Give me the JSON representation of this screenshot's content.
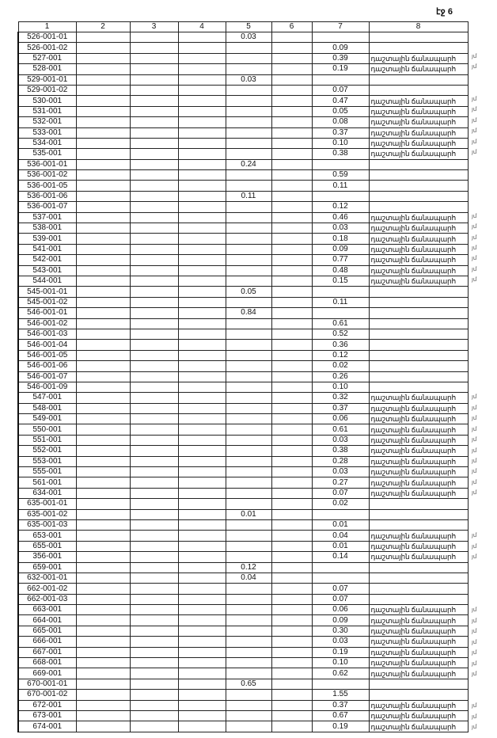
{
  "page_label": "էջ 6",
  "columns": [
    "1",
    "2",
    "3",
    "4",
    "5",
    "6",
    "7",
    "8"
  ],
  "road_label": "դաշտային ճանապարհ",
  "margin_mark": "յմ",
  "rows": [
    [
      "526-001-01",
      "0.03",
      "",
      ""
    ],
    [
      "526-001-02",
      "",
      "0.09",
      ""
    ],
    [
      "527-001",
      "",
      "0.39",
      "դաշտային ճանապարհ"
    ],
    [
      "528-001",
      "",
      "0.19",
      "դաշտային ճանապարհ"
    ],
    [
      "529-001-01",
      "0.03",
      "",
      ""
    ],
    [
      "529-001-02",
      "",
      "0.07",
      ""
    ],
    [
      "530-001",
      "",
      "0.47",
      "դաշտային ճանապարհ"
    ],
    [
      "531-001",
      "",
      "0.05",
      "դաշտային ճանապարհ"
    ],
    [
      "532-001",
      "",
      "0.08",
      "դաշտային ճանապարհ"
    ],
    [
      "533-001",
      "",
      "0.37",
      "դաշտային ճանապարհ"
    ],
    [
      "534-001",
      "",
      "0.10",
      "դաշտային ճանապարհ"
    ],
    [
      "535-001",
      "",
      "0.38",
      "դաշտային ճանապարհ"
    ],
    [
      "536-001-01",
      "0.24",
      "",
      ""
    ],
    [
      "536-001-02",
      "",
      "0.59",
      ""
    ],
    [
      "536-001-05",
      "",
      "0.11",
      ""
    ],
    [
      "536-001-06",
      "0.11",
      "",
      ""
    ],
    [
      "536-001-07",
      "",
      "0.12",
      ""
    ],
    [
      "537-001",
      "",
      "0.46",
      "դաշտային ճանապարհ"
    ],
    [
      "538-001",
      "",
      "0.03",
      "դաշտային ճանապարհ"
    ],
    [
      "539-001",
      "",
      "0.18",
      "դաշտային ճանապարհ"
    ],
    [
      "541-001",
      "",
      "0.09",
      "դաշտային ճանապարհ"
    ],
    [
      "542-001",
      "",
      "0.77",
      "դաշտային ճանապարհ"
    ],
    [
      "543-001",
      "",
      "0.48",
      "դաշտային ճանապարհ"
    ],
    [
      "544-001",
      "",
      "0.15",
      "դաշտային ճանապարհ"
    ],
    [
      "545-001-01",
      "0.05",
      "",
      ""
    ],
    [
      "545-001-02",
      "",
      "0.11",
      ""
    ],
    [
      "546-001-01",
      "0.84",
      "",
      ""
    ],
    [
      "546-001-02",
      "",
      "0.61",
      ""
    ],
    [
      "546-001-03",
      "",
      "0.52",
      ""
    ],
    [
      "546-001-04",
      "",
      "0.36",
      ""
    ],
    [
      "546-001-05",
      "",
      "0.12",
      ""
    ],
    [
      "546-001-06",
      "",
      "0.02",
      ""
    ],
    [
      "546-001-07",
      "",
      "0.26",
      ""
    ],
    [
      "546-001-09",
      "",
      "0.10",
      ""
    ],
    [
      "547-001",
      "",
      "0.32",
      "դաշտային ճանապարհ"
    ],
    [
      "548-001",
      "",
      "0.37",
      "դաշտային ճանապարհ"
    ],
    [
      "549-001",
      "",
      "0.06",
      "դաշտային ճանապարհ"
    ],
    [
      "550-001",
      "",
      "0.61",
      "դաշտային ճանապարհ"
    ],
    [
      "551-001",
      "",
      "0.03",
      "դաշտային ճանապարհ"
    ],
    [
      "552-001",
      "",
      "0.38",
      "դաշտային ճանապարհ"
    ],
    [
      "553-001",
      "",
      "0.28",
      "դաշտային ճանապարհ"
    ],
    [
      "555-001",
      "",
      "0.03",
      "դաշտային ճանապարհ"
    ],
    [
      "561-001",
      "",
      "0.27",
      "դաշտային ճանապարհ"
    ],
    [
      "634-001",
      "",
      "0.07",
      "դաշտային ճանապարհ"
    ],
    [
      "635-001-01",
      "",
      "0.02",
      ""
    ],
    [
      "635-001-02",
      "0.01",
      "",
      ""
    ],
    [
      "635-001-03",
      "",
      "0.01",
      ""
    ],
    [
      "653-001",
      "",
      "0.04",
      "դաշտային ճանապարհ"
    ],
    [
      "655-001",
      "",
      "0.01",
      "դաշտային ճանապարհ"
    ],
    [
      "356-001",
      "",
      "0.14",
      "դաշտային ճանապարհ"
    ],
    [
      "659-001",
      "0.12",
      "",
      ""
    ],
    [
      "632-001-01",
      "0.04",
      "",
      ""
    ],
    [
      "662-001-02",
      "",
      "0.07",
      ""
    ],
    [
      "662-001-03",
      "",
      "0.07",
      ""
    ],
    [
      "663-001",
      "",
      "0.06",
      "դաշտային ճանապարհ"
    ],
    [
      "664-001",
      "",
      "0.09",
      "դաշտային ճանապարհ"
    ],
    [
      "665-001",
      "",
      "0.30",
      "դաշտային ճանապարհ"
    ],
    [
      "666-001",
      "",
      "0.03",
      "դաշտային ճանապարհ"
    ],
    [
      "667-001",
      "",
      "0.19",
      "դաշտային ճանապարհ"
    ],
    [
      "668-001",
      "",
      "0.10",
      "դաշտային ճանապարհ"
    ],
    [
      "669-001",
      "",
      "0.62",
      "դաշտային ճանապարհ"
    ],
    [
      "670-001-01",
      "0.65",
      "",
      ""
    ],
    [
      "670-001-02",
      "",
      "1.55",
      ""
    ],
    [
      "672-001",
      "",
      "0.37",
      "դաշտային ճանապարհ"
    ],
    [
      "673-001",
      "",
      "0.67",
      "դաշտային ճանապարհ"
    ],
    [
      "674-001",
      "",
      "0.19",
      "դաշտային ճանապարհ"
    ]
  ]
}
